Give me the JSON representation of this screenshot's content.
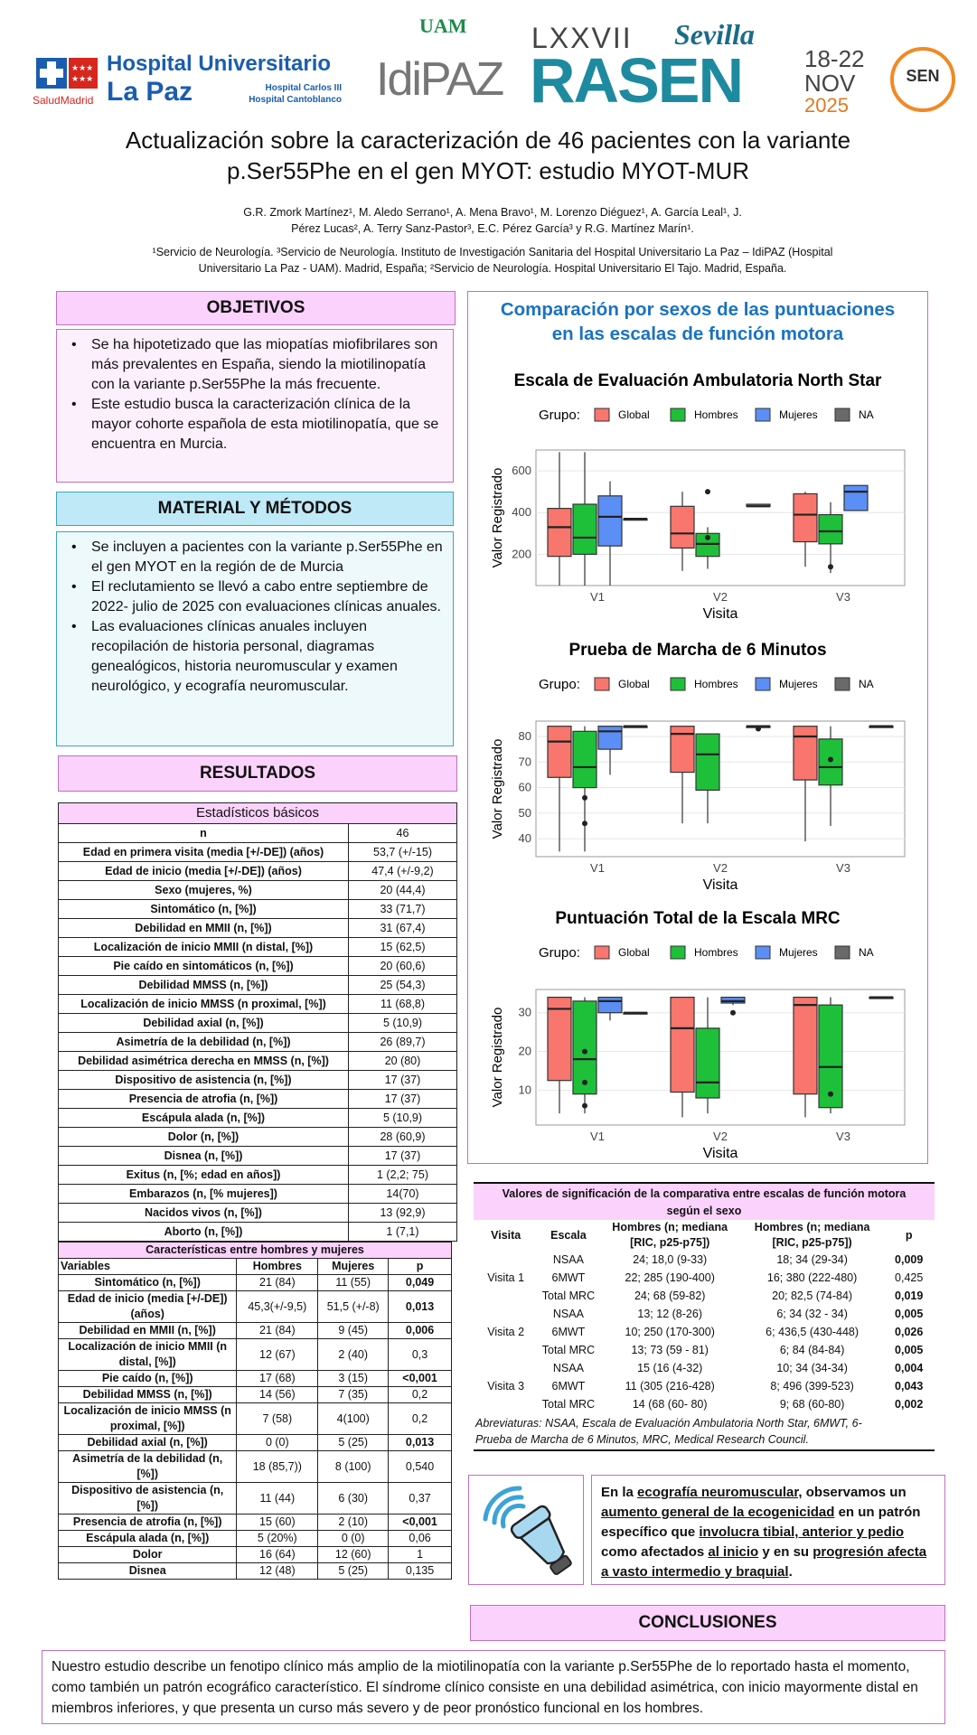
{
  "logos": {
    "salud_madrid": "SaludMadrid",
    "hospital_line1": "Hospital Universitario",
    "hospital_line2": "La Paz",
    "hospital_sub1": "Hospital Carlos III",
    "hospital_sub2": "Hospital Cantoblanco",
    "uam": "UAM",
    "idipaz": "IdiPAZ",
    "rasen_number": "LXXVII",
    "rasen": "RASEN",
    "sevilla": "Sevilla",
    "dates_days": "18-22",
    "dates_month": "NOV",
    "dates_year": "2025",
    "sen": "SEN"
  },
  "title_line1": "Actualización sobre la caracterización de 46 pacientes con la variante",
  "title_line2": "p.Ser55Phe en el gen MYOT: estudio MYOT-MUR",
  "authors_line1": "G.R. Zmork Martínez¹, M. Aledo Serrano¹, A. Mena Bravo¹, M. Lorenzo Diéguez¹, A. García Leal¹, J.",
  "authors_line2": "Pérez Lucas², A. Terry Sanz-Pastor³, E.C. Pérez García³ y R.G. Martínez Marín¹.",
  "affil_line1": "¹Servicio de Neurología. ³Servicio de Neurología. Instituto de Investigación Sanitaria del Hospital Universitario La Paz – IdiPAZ (Hospital",
  "affil_line2": "Universitario La Paz - UAM). Madrid, España; ²Servicio de Neurología. Hospital Universitario El Tajo. Madrid, España.",
  "objetivos": {
    "heading": "OBJETIVOS",
    "items": [
      "Se ha hipotetizado que las miopatías miofibrilares son más prevalentes en España, siendo la miotilinopatía con la variante p.Ser55Phe la más frecuente.",
      "Este estudio busca la caracterización clínica de la mayor cohorte española de esta miotilinopatía, que se encuentra en Murcia."
    ]
  },
  "metodos": {
    "heading": "MATERIAL Y MÉTODOS",
    "items": [
      "Se incluyen a pacientes con la variante p.Ser55Phe en el gen MYOT en la región de de Murcia",
      "El reclutamiento se llevó a cabo entre septiembre de 2022- julio de 2025 con evaluaciones clínicas anuales.",
      "Las evaluaciones clínicas anuales incluyen recopilación de historia personal, diagramas genealógicos, historia neuromuscular y examen neurológico, y ecografía neuromuscular."
    ]
  },
  "resultados": {
    "heading": "RESULTADOS",
    "table1_title": "Estadísticos básicos",
    "table1": [
      [
        "n",
        "46"
      ],
      [
        "Edad en primera visita (media [+/-DE]) (años)",
        "53,7 (+/-15)"
      ],
      [
        "Edad de inicio (media [+/-DE]) (años)",
        "47,4 (+/-9,2)"
      ],
      [
        "Sexo (mujeres, %)",
        "20 (44,4)"
      ],
      [
        "Sintomático (n, [%])",
        "33 (71,7)"
      ],
      [
        "Debilidad en MMII (n, [%])",
        "31 (67,4)"
      ],
      [
        "Localización de inicio MMII (n distal, [%])",
        "15 (62,5)"
      ],
      [
        "Pie caído en sintomáticos (n, [%])",
        "20 (60,6)"
      ],
      [
        "Debilidad MMSS (n, [%])",
        "25 (54,3)"
      ],
      [
        "Localización de inicio MMSS (n proximal, [%])",
        "11 (68,8)"
      ],
      [
        "Debilidad axial (n, [%])",
        "5 (10,9)"
      ],
      [
        "Asimetría de la debilidad (n, [%])",
        "26 (89,7)"
      ],
      [
        "Debilidad asimétrica derecha en MMSS (n, [%])",
        "20 (80)"
      ],
      [
        "Dispositivo de asistencia (n, [%])",
        "17 (37)"
      ],
      [
        "Presencia de atrofia (n, [%])",
        "17 (37)"
      ],
      [
        "Escápula alada (n, [%])",
        "5 (10,9)"
      ],
      [
        "Dolor (n, [%])",
        "28 (60,9)"
      ],
      [
        "Disnea (n, [%])",
        "17 (37)"
      ],
      [
        "Exitus (n, [%; edad en años])",
        "1 (2,2; 75)"
      ],
      [
        "Embarazos (n, [% mujeres])",
        "14(70)"
      ],
      [
        "Nacidos vivos (n, [%])",
        "13 (92,9)"
      ],
      [
        "Aborto (n, [%])",
        "1 (7,1)"
      ]
    ],
    "table2_title": "Características entre hombres y mujeres",
    "table2_headers": [
      "Variables",
      "Hombres",
      "Mujeres",
      "p"
    ],
    "table2": [
      [
        "Sintomático (n, [%])",
        "21 (84)",
        "11 (55)",
        "0,049",
        true
      ],
      [
        "Edad de inicio (media [+/-DE]) (años)",
        "45,3(+/-9,5)",
        "51,5 (+/-8)",
        "0,013",
        true
      ],
      [
        "Debilidad en MMII (n, [%])",
        "21 (84)",
        "9 (45)",
        "0,006",
        true
      ],
      [
        "Localización de inicio MMII (n distal, [%])",
        "12 (67)",
        "2 (40)",
        "0,3",
        false
      ],
      [
        "Pie caído (n, [%])",
        "17 (68)",
        "3 (15)",
        "<0,001",
        true
      ],
      [
        "Debilidad MMSS (n, [%])",
        "14 (56)",
        "7 (35)",
        "0,2",
        false
      ],
      [
        "Localización de inicio MMSS (n proximal, [%])",
        "7 (58)",
        "4(100)",
        "0,2",
        false
      ],
      [
        "Debilidad axial (n, [%])",
        "0 (0)",
        "5 (25)",
        "0,013",
        true
      ],
      [
        "Asimetría de la debilidad (n, [%])",
        "18 (85,7))",
        "8 (100)",
        "0,540",
        false
      ],
      [
        "Dispositivo de asistencia (n, [%])",
        "11 (44)",
        "6 (30)",
        "0,37",
        false
      ],
      [
        "Presencia de atrofia (n, [%])",
        "15 (60)",
        "2 (10)",
        "<0,001",
        true
      ],
      [
        "Escápula alada (n, [%])",
        "5 (20%)",
        "0 (0)",
        "0,06",
        false
      ],
      [
        "Dolor",
        "16 (64)",
        "12 (60)",
        "1",
        false
      ],
      [
        "Disnea",
        "12 (48)",
        "5 (25)",
        "0,135",
        false
      ]
    ]
  },
  "comparacion": {
    "heading_line1": "Comparación por sexos de las puntuaciones",
    "heading_line2": "en las escalas de función motora",
    "legend_label": "Grupo:",
    "legend_items": [
      "Global",
      "Hombres",
      "Mujeres",
      "NA"
    ],
    "ylabel": "Valor Registrado",
    "xlabel": "Visita"
  },
  "chart_data": [
    {
      "type": "box",
      "title": "Escala de Evaluación Ambulatoria North Star",
      "xlabel": "Visita",
      "ylabel": "Valor Registrado",
      "categories": [
        "V1",
        "V2",
        "V3"
      ],
      "ylim": [
        50,
        700
      ],
      "yticks": [
        200,
        400,
        600
      ],
      "series": [
        {
          "name": "Global",
          "color": "#f8766d",
          "boxes": [
            [
              50,
              190,
              330,
              420,
              690
            ],
            [
              120,
              230,
              300,
              430,
              500
            ],
            [
              140,
              260,
              390,
              490,
              500
            ]
          ],
          "outliers": [
            [],
            [],
            []
          ]
        },
        {
          "name": "Hombres",
          "color": "#1ec03a",
          "boxes": [
            [
              50,
              200,
              280,
              440,
              690
            ],
            [
              130,
              190,
              250,
              300,
              330
            ],
            [
              110,
              250,
              310,
              390,
              450
            ]
          ],
          "outliers": [
            [],
            [
              500,
              280
            ],
            [
              140
            ]
          ]
        },
        {
          "name": "Mujeres",
          "color": "#5b8ff5",
          "boxes": [
            [
              50,
              240,
              380,
              480,
              550
            ],
            [],
            [
              410,
              410,
              500,
              530,
              530
            ]
          ],
          "outliers": [
            [],
            [],
            []
          ]
        },
        {
          "name": "NA",
          "color": "#6a6a6a",
          "boxes": [
            [
              370,
              370,
              370,
              370,
              370
            ],
            [
              430,
              430,
              430,
              440,
              440
            ],
            []
          ],
          "outliers": [
            [],
            [],
            []
          ]
        }
      ]
    },
    {
      "type": "box",
      "title": "Prueba de Marcha de 6 Minutos",
      "xlabel": "Visita",
      "ylabel": "Valor Registrado",
      "categories": [
        "V1",
        "V2",
        "V3"
      ],
      "ylim": [
        33,
        86
      ],
      "yticks": [
        40,
        50,
        60,
        70,
        80
      ],
      "series": [
        {
          "name": "Global",
          "color": "#f8766d",
          "boxes": [
            [
              35,
              64,
              78,
              84,
              84
            ],
            [
              46,
              66,
              81,
              84,
              84
            ],
            [
              39,
              63,
              80,
              84,
              84
            ]
          ],
          "outliers": [
            [],
            [],
            []
          ]
        },
        {
          "name": "Hombres",
          "color": "#1ec03a",
          "boxes": [
            [
              35,
              60,
              68,
              82,
              84
            ],
            [
              46,
              59,
              73,
              81,
              81
            ],
            [
              45,
              61,
              68,
              79,
              84
            ]
          ],
          "outliers": [
            [
              56,
              46
            ],
            [],
            [
              71
            ]
          ]
        },
        {
          "name": "Mujeres",
          "color": "#5b8ff5",
          "boxes": [
            [
              65,
              75,
              82,
              84,
              84
            ],
            [],
            []
          ],
          "outliers": [
            [],
            [],
            []
          ]
        },
        {
          "name": "NA",
          "color": "#6a6a6a",
          "boxes": [
            [
              84,
              84,
              84,
              84,
              84
            ],
            [
              84,
              84,
              84,
              84,
              84
            ],
            [
              84,
              84,
              84,
              84,
              84
            ]
          ],
          "outliers": [
            [],
            [
              83
            ],
            []
          ]
        }
      ]
    },
    {
      "type": "box",
      "title": "Puntuación Total de la Escala MRC",
      "xlabel": "Visita",
      "ylabel": "Valor Registrado",
      "categories": [
        "V1",
        "V2",
        "V3"
      ],
      "ylim": [
        1,
        36
      ],
      "yticks": [
        10,
        20,
        30
      ],
      "series": [
        {
          "name": "Global",
          "color": "#f8766d",
          "boxes": [
            [
              4,
              12.5,
              31,
              34,
              34
            ],
            [
              3,
              9.5,
              26,
              34,
              34
            ],
            [
              3,
              9,
              32,
              34,
              34
            ]
          ],
          "outliers": [
            [],
            [],
            []
          ]
        },
        {
          "name": "Hombres",
          "color": "#1ec03a",
          "boxes": [
            [
              4,
              9,
              18,
              33,
              34
            ],
            [
              4,
              8,
              12,
              26,
              34
            ],
            [
              4,
              5.5,
              16,
              32,
              34
            ]
          ],
          "outliers": [
            [
              20,
              12,
              6
            ],
            [],
            [
              9
            ]
          ]
        },
        {
          "name": "Mujeres",
          "color": "#5b8ff5",
          "boxes": [
            [
              28,
              30,
              33,
              34,
              34
            ],
            [
              32,
              32.5,
              33,
              34,
              34
            ],
            []
          ],
          "outliers": [
            [],
            [
              30
            ],
            []
          ]
        },
        {
          "name": "NA",
          "color": "#6a6a6a",
          "boxes": [
            [
              30,
              30,
              30,
              30,
              30
            ],
            [],
            [
              34,
              34,
              34,
              34,
              34
            ]
          ],
          "outliers": [
            [],
            [],
            []
          ]
        }
      ]
    }
  ],
  "significancia": {
    "title_line1": "Valores de significación de la comparativa entre escalas de función motora",
    "title_line2": "según el sexo",
    "headers": [
      "Visita",
      "Escala",
      "Hombres (n; mediana [RIC, p25-p75])",
      "Hombres (n; mediana [RIC, p25-p75])",
      "p"
    ],
    "rows": [
      [
        "",
        "NSAA",
        "24; 18,0 (9-33)",
        "18; 34 (29-34)",
        "0,009",
        true
      ],
      [
        "Visita 1",
        "6MWT",
        "22; 285 (190-400)",
        "16; 380 (222-480)",
        "0,425",
        false
      ],
      [
        "",
        "Total MRC",
        "24; 68 (59-82)",
        "20; 82,5 (74-84)",
        "0,019",
        true
      ],
      [
        "",
        "NSAA",
        "13; 12 (8-26)",
        "6; 34 (32 - 34)",
        "0,005",
        true
      ],
      [
        "Visita 2",
        "6MWT",
        "10; 250 (170-300)",
        "6; 436,5 (430-448)",
        "0,026",
        true
      ],
      [
        "",
        "Total MRC",
        "13; 73 (59 - 81)",
        "6; 84 (84-84)",
        "0,005",
        true
      ],
      [
        "",
        "NSAA",
        "15 (16 (4-32)",
        "10; 34 (34-34)",
        "0,004",
        true
      ],
      [
        "Visita 3",
        "6MWT",
        "11 (305 (216-428)",
        "8; 496 (399-523)",
        "0,043",
        true
      ],
      [
        "",
        "Total MRC",
        "14 (68 (60- 80)",
        "9; 68 (60-80)",
        "0,002",
        true
      ]
    ],
    "abbrev_line1": "Abreviaturas: NSAA, Escala de Evaluación Ambulatoria North Star, 6MWT, 6-",
    "abbrev_line2": "Prueba de Marcha de 6 Minutos, MRC, Medical Research Council."
  },
  "ecografia": {
    "p1": "En la ",
    "u1": "ecografía neuromuscular,",
    "p2": " observamos un ",
    "u2": "aumento general de la ecogenicidad",
    "p3": " en un patrón específico que ",
    "u3": "involucra tibial, anterior y pedio",
    "p4": " como afectados ",
    "u4": "al inicio",
    "p5": " y en su ",
    "u5": "progresión afecta a vasto intermedio y braquial",
    "p6": "."
  },
  "conclusiones": {
    "heading": "CONCLUSIONES",
    "text": "Nuestro estudio describe un fenotipo clínico más amplio de la miotilinopatía con la variante p.Ser55Phe de lo reportado hasta el momento, como también un patrón ecográfico característico. El síndrome clínico consiste en una debilidad asimétrica, con inicio mayormente distal en miembros inferiores, y que presenta un curso más severo y de peor pronóstico funcional en los hombres."
  }
}
